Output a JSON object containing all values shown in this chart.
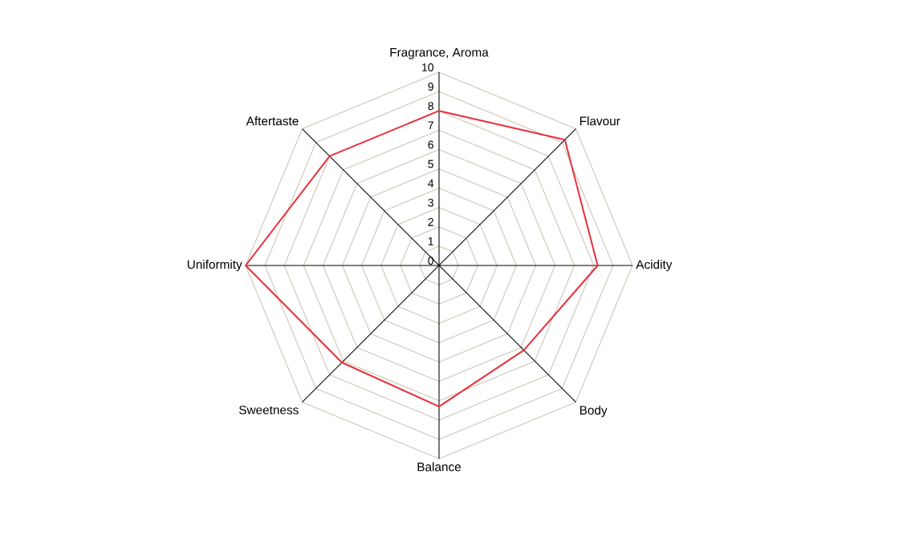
{
  "chart_data": {
    "type": "radar",
    "categories": [
      "Fragrance, Aroma",
      "Flavour",
      "Acidity",
      "Body",
      "Balance",
      "Sweetness",
      "Uniformity",
      "Aftertaste"
    ],
    "series": [
      {
        "color": "#e8303a",
        "values": [
          8.0,
          9.2,
          8.2,
          6.2,
          7.3,
          7.1,
          10.0,
          8.0
        ]
      }
    ],
    "ylim": [
      0,
      10
    ],
    "yticks": [
      0,
      1,
      2,
      3,
      4,
      5,
      6,
      7,
      8,
      9,
      10
    ],
    "grid": true,
    "marker": "none",
    "line_style": "solid"
  }
}
